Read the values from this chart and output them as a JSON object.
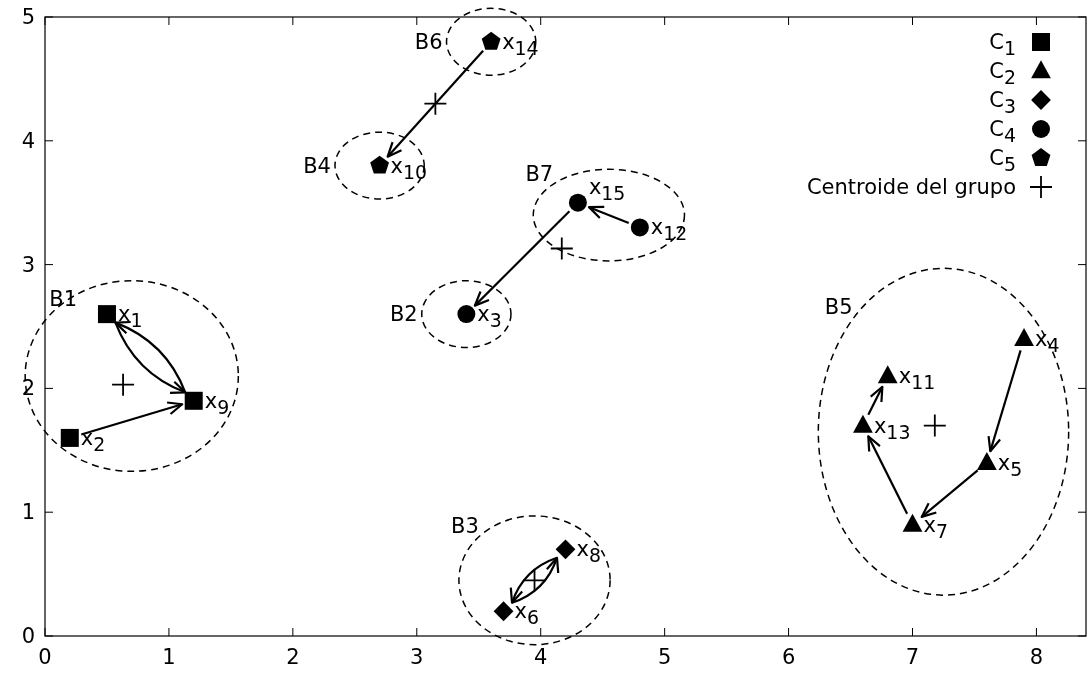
{
  "chart_data": {
    "type": "scatter",
    "xlim": [
      0,
      8.4
    ],
    "ylim": [
      0,
      5
    ],
    "xticks": [
      0,
      1,
      2,
      3,
      4,
      5,
      6,
      7,
      8
    ],
    "yticks": [
      0,
      1,
      2,
      3,
      4,
      5
    ],
    "grid": false,
    "legend": "top right",
    "series": [
      {
        "name": "C$_{1}$",
        "color": "#000000",
        "marker": "square",
        "x": [
          0.5,
          0.2,
          1.2
        ],
        "values": [
          2.6,
          1.6,
          1.9
        ]
      },
      {
        "name": "C$_{2}$",
        "color": "#000000",
        "marker": "triangle",
        "x": [
          7.9,
          7.6,
          7.0,
          6.8,
          6.6
        ],
        "values": [
          2.4,
          1.4,
          0.9,
          2.1,
          1.7
        ]
      },
      {
        "name": "C$_{3}$",
        "color": "#000000",
        "marker": "diamond",
        "x": [
          3.7,
          4.2
        ],
        "values": [
          0.2,
          0.7
        ]
      },
      {
        "name": "C$_{4}$",
        "color": "#000000",
        "marker": "circle",
        "x": [
          3.4,
          4.8,
          4.3
        ],
        "values": [
          2.6,
          3.3,
          3.5
        ]
      },
      {
        "name": "C$_{5}$",
        "color": "#000000",
        "x": [
          2.7,
          3.6
        ],
        "values": [
          3.8,
          4.8
        ]
      },
      {
        "name": "Centroide del grupo",
        "color": "#000000",
        "marker": "cross",
        "x": [
          0.63,
          7.18,
          3.95,
          4.17,
          3.15
        ],
        "values": [
          2.03,
          1.7,
          0.45,
          3.13,
          4.3
        ]
      }
    ],
    "annotations": [
      "B1",
      "B2",
      "B3",
      "B4",
      "B5",
      "B6",
      "B7",
      {
        "text": "x$_{1}$",
        "x": 0.5,
        "y": 2.6
      },
      {
        "text": "x$_{2}$",
        "x": 0.2,
        "y": 1.6
      },
      {
        "text": "x$_{9}$",
        "x": 1.2,
        "y": 1.9
      },
      {
        "text": "x$_{4}$",
        "x": 7.9,
        "y": 2.4
      },
      {
        "text": "x$_{5}$",
        "x": 7.6,
        "y": 1.4
      },
      {
        "text": "x$_{7}$",
        "x": 7.0,
        "y": 0.9
      },
      {
        "text": "x$_{11}$",
        "x": 6.8,
        "y": 2.1
      },
      {
        "text": "x$_{13}$",
        "x": 6.6,
        "y": 1.7
      },
      {
        "text": "x$_{6}$",
        "x": 3.7,
        "y": 0.2
      },
      {
        "text": "x$_{8}$",
        "x": 4.2,
        "y": 0.7
      },
      {
        "text": "x$_{3}$",
        "x": 3.4,
        "y": 2.6
      },
      {
        "text": "x$_{12}$",
        "x": 4.8,
        "y": 3.3
      },
      {
        "text": "x$_{15}$",
        "x": 4.3,
        "y": 3.5
      },
      {
        "text": "x$_{10}$",
        "x": 2.7,
        "y": 3.8
      },
      {
        "text": "x$_{14}$",
        "x": 3.6,
        "y": 4.8
      }
    ]
  }
}
